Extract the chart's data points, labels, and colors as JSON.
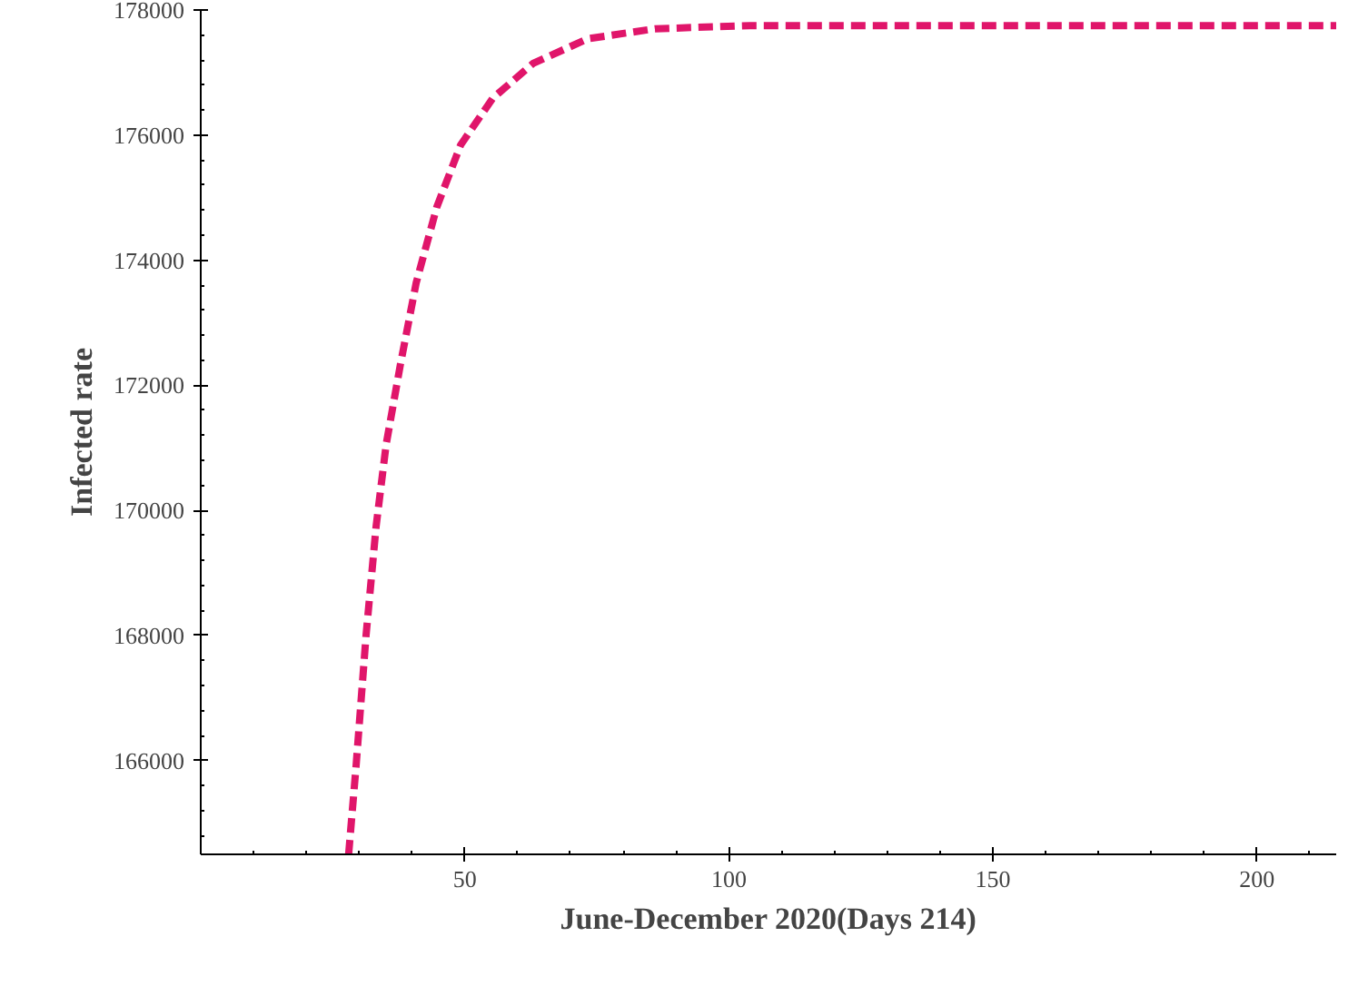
{
  "chart_data": {
    "type": "line",
    "xlabel": "June-December 2020(Days 214)",
    "ylabel": "Infected rate",
    "xlim": [
      0,
      215
    ],
    "ylim": [
      164500,
      178000
    ],
    "xticks": [
      50,
      100,
      150,
      200
    ],
    "yticks": [
      166000,
      168000,
      170000,
      172000,
      174000,
      176000,
      178000
    ],
    "line_style": "dashed",
    "series": [
      {
        "color": "#e0156a",
        "x": [
          28,
          29.4,
          31.3,
          33.2,
          35.1,
          37.8,
          40.8,
          44.7,
          49.2,
          55.3,
          63,
          73.3,
          86,
          104,
          215
        ],
        "values": [
          164500,
          165900,
          168000,
          169740,
          171050,
          172330,
          173640,
          174850,
          175840,
          176590,
          177150,
          177540,
          177700,
          177750,
          177750
        ]
      }
    ]
  }
}
